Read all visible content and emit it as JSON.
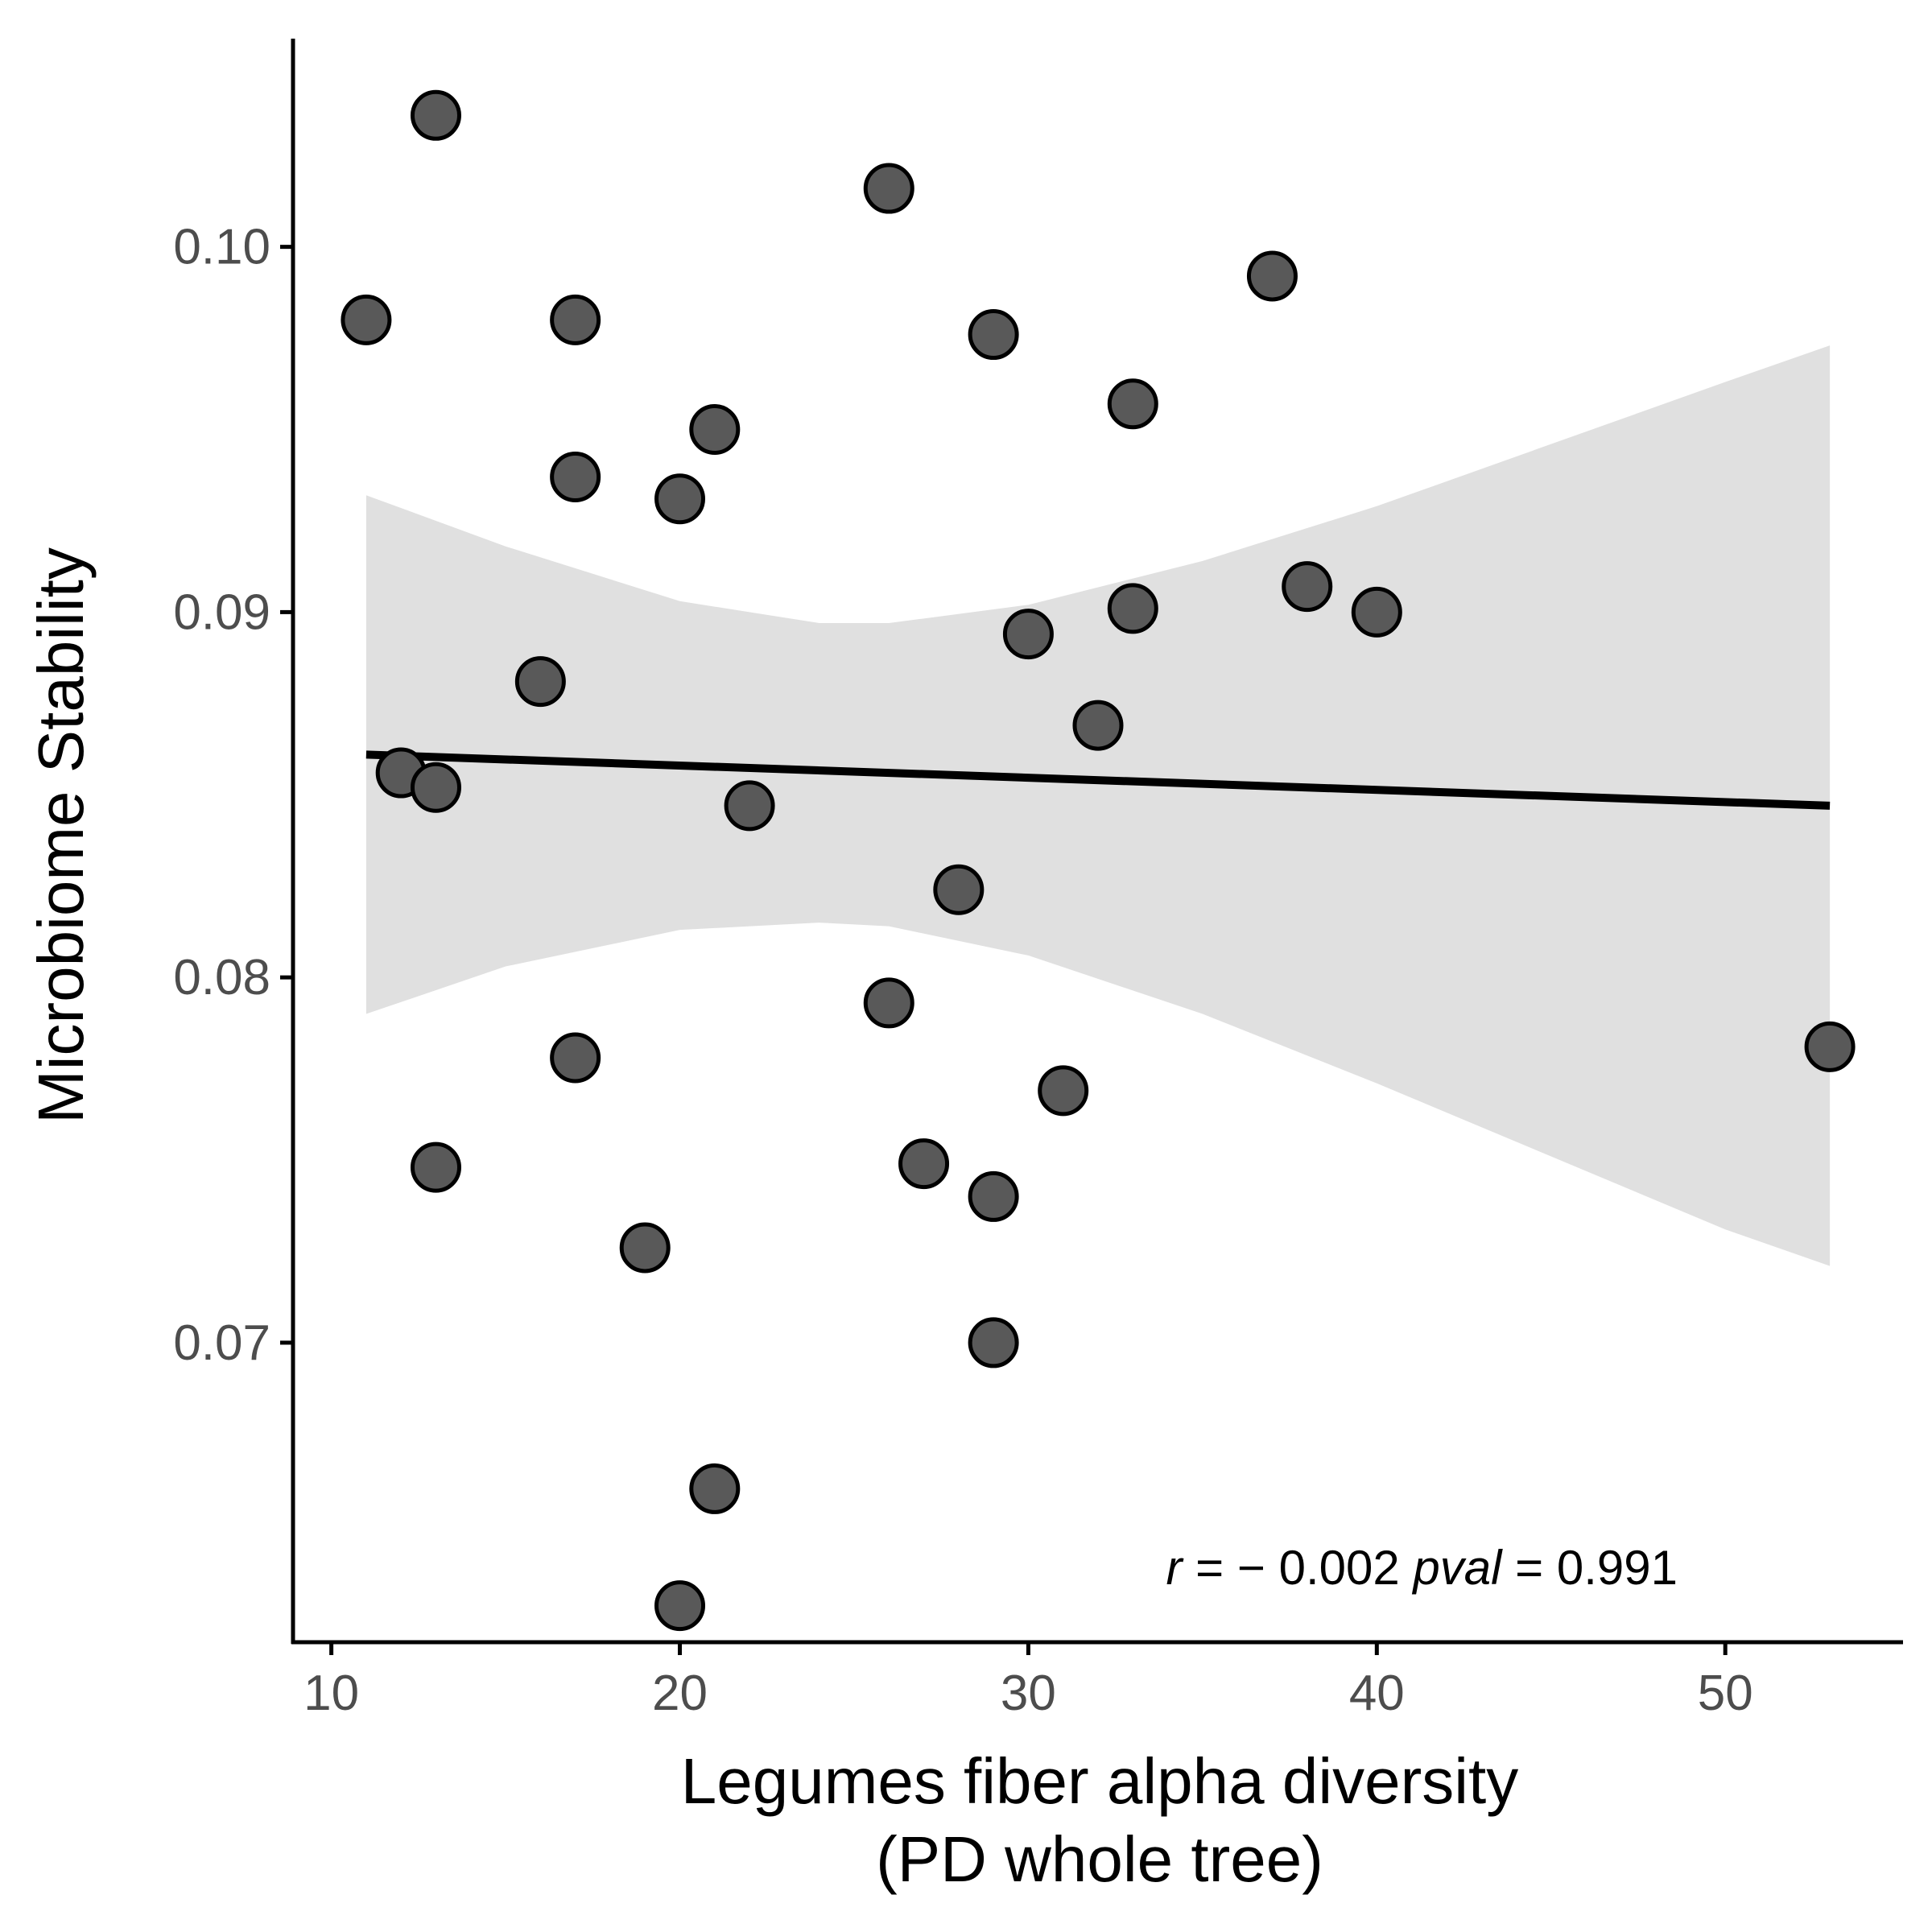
{
  "chart_data": {
    "type": "scatter",
    "title": "",
    "xlabel_lines": [
      "Legumes fiber alpha diversity",
      "(PD whole tree)"
    ],
    "ylabel": "Microbiome Stability",
    "xlim": [
      8.9,
      55.1
    ],
    "ylim": [
      0.0618,
      0.1057
    ],
    "x_ticks": [
      10,
      20,
      30,
      40,
      50
    ],
    "y_ticks": [
      0.07,
      0.08,
      0.09,
      0.1
    ],
    "x_tick_labels": [
      "10",
      "20",
      "30",
      "40",
      "50"
    ],
    "y_tick_labels": [
      "0.07",
      "0.08",
      "0.09",
      "0.10"
    ],
    "grid": false,
    "points": [
      {
        "x": 11,
        "y": 0.098
      },
      {
        "x": 12,
        "y": 0.0856
      },
      {
        "x": 13,
        "y": 0.1036
      },
      {
        "x": 13,
        "y": 0.0852
      },
      {
        "x": 13,
        "y": 0.0748
      },
      {
        "x": 16,
        "y": 0.0881
      },
      {
        "x": 17,
        "y": 0.098
      },
      {
        "x": 17,
        "y": 0.0937
      },
      {
        "x": 17,
        "y": 0.0778
      },
      {
        "x": 19,
        "y": 0.0726
      },
      {
        "x": 20,
        "y": 0.0931
      },
      {
        "x": 20,
        "y": 0.0628
      },
      {
        "x": 21,
        "y": 0.095
      },
      {
        "x": 21,
        "y": 0.066
      },
      {
        "x": 22,
        "y": 0.0847
      },
      {
        "x": 26,
        "y": 0.1016
      },
      {
        "x": 26,
        "y": 0.0793
      },
      {
        "x": 27,
        "y": 0.0749
      },
      {
        "x": 28,
        "y": 0.0824
      },
      {
        "x": 29,
        "y": 0.0976
      },
      {
        "x": 29,
        "y": 0.074
      },
      {
        "x": 29,
        "y": 0.07
      },
      {
        "x": 30,
        "y": 0.0894
      },
      {
        "x": 31,
        "y": 0.0769
      },
      {
        "x": 32,
        "y": 0.0869
      },
      {
        "x": 33,
        "y": 0.0957
      },
      {
        "x": 33,
        "y": 0.0901
      },
      {
        "x": 37,
        "y": 0.0992
      },
      {
        "x": 38,
        "y": 0.0907
      },
      {
        "x": 40,
        "y": 0.09
      },
      {
        "x": 53,
        "y": 0.0781
      }
    ],
    "fit_line": {
      "x": [
        11,
        53
      ],
      "y": [
        0.0861,
        0.0847
      ]
    },
    "confidence_band": {
      "x": [
        11,
        15,
        20,
        24,
        26,
        30,
        35,
        40,
        45,
        50,
        53
      ],
      "upper": [
        0.0932,
        0.0918,
        0.0903,
        0.0897,
        0.0897,
        0.0902,
        0.0914,
        0.0929,
        0.0946,
        0.0963,
        0.0973
      ],
      "lower": [
        0.079,
        0.0803,
        0.0813,
        0.0815,
        0.0814,
        0.0806,
        0.079,
        0.0771,
        0.0751,
        0.0731,
        0.0721
      ]
    },
    "annotation": {
      "r_label": "r",
      "r_text": " = − 0.002 ",
      "p_label": "pval",
      "p_text": " = 0.991"
    },
    "colors": {
      "point_fill": "#595959",
      "point_stroke": "#000000",
      "band": "#e0e0e0",
      "line": "#000000",
      "axis": "#000000",
      "tick_text": "#4d4d4d"
    }
  }
}
